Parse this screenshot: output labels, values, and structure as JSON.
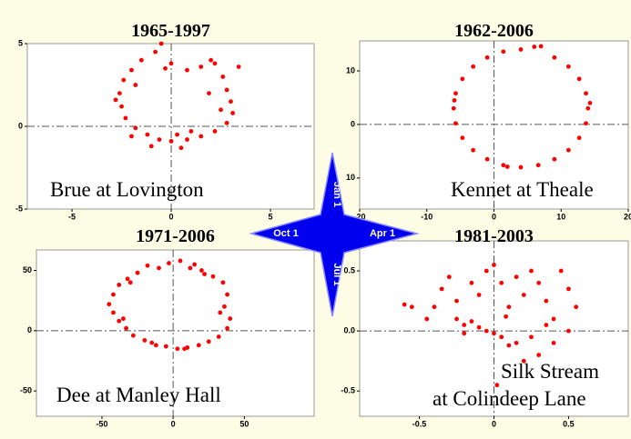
{
  "chart_data": [
    {
      "type": "scatter",
      "title": "1965-1997",
      "annotation": [
        "Brue at Lovington"
      ],
      "color": "#ff0000",
      "crosshair": true,
      "xlim": [
        -7.25,
        7.2
      ],
      "ylim": [
        -5,
        5
      ],
      "xticks": [
        -5,
        0,
        5
      ],
      "yticks": [
        -5,
        0,
        5
      ],
      "x": [
        -1.5,
        -0.8,
        0,
        0.8,
        1.5,
        2.2,
        2.6,
        2.8,
        3.0,
        3.1,
        2.8,
        2.2,
        1.5,
        0.8,
        0,
        -0.6,
        -1.2,
        -1.8,
        -2.3,
        -2.5,
        -2.6,
        -2.4,
        -2.0,
        -1.0,
        0.3,
        1.0,
        -2.0,
        2.5,
        -0.3,
        1.9,
        -2.8,
        0.5,
        3.4,
        2.0,
        -1.8,
        -0.5
      ],
      "values": [
        4.0,
        4.5,
        3.8,
        3.4,
        3.6,
        3.8,
        3.0,
        2.2,
        1.5,
        0.8,
        0.2,
        -0.3,
        -0.6,
        -0.8,
        -0.9,
        -0.8,
        -0.5,
        -0.1,
        0.5,
        1.2,
        2.0,
        2.8,
        3.4,
        -1.2,
        -0.5,
        -0.3,
        -0.6,
        1.0,
        3.5,
        2.0,
        1.6,
        -1.3,
        3.6,
        4.0,
        2.5,
        5.0
      ]
    },
    {
      "type": "scatter",
      "title": "1962-2006",
      "annotation": [
        "Kennet at Theale"
      ],
      "color": "#ff0000",
      "crosshair": true,
      "xlim": [
        -20,
        20
      ],
      "ylim": [
        -15.8,
        15.6
      ],
      "xticks": [
        -20,
        -10,
        0,
        10,
        20
      ],
      "yticks": [
        {
          "value": -10,
          "label": "10"
        },
        0,
        10
      ],
      "x": [
        14,
        13.7,
        12.7,
        11.1,
        9,
        6,
        4,
        1.4,
        -1,
        -3.1,
        -4.7,
        -5.7,
        -6,
        -5.7,
        -4.7,
        -3.1,
        -1,
        1.4,
        4,
        6.6,
        9,
        11.1,
        12.7,
        13.7,
        7,
        14.3,
        2,
        -5.9
      ],
      "values": [
        3,
        5.8,
        8.5,
        10.8,
        12.5,
        14.5,
        14,
        13.6,
        12.5,
        10.8,
        8.5,
        5.8,
        3,
        0.2,
        -2.5,
        -4.8,
        -6.5,
        -7.6,
        -8,
        -7.6,
        -6.5,
        -4.8,
        -2.5,
        0.2,
        14.6,
        4,
        -7.9,
        4.5
      ]
    },
    {
      "type": "scatter",
      "title": "1971-2006",
      "annotation": [
        "Dee at Manley Hall"
      ],
      "color": "#ff0000",
      "crosshair": true,
      "xlim": [
        -96,
        99
      ],
      "ylim": [
        -71,
        67
      ],
      "xticks": [
        -50,
        0,
        50
      ],
      "yticks": [
        -50,
        0,
        50
      ],
      "x": [
        -45,
        -42,
        -38,
        -32,
        -25,
        -18,
        -10,
        -3,
        5,
        12,
        20,
        28,
        35,
        38,
        36,
        40,
        38,
        32,
        25,
        18,
        10,
        3,
        -5,
        -12,
        -20,
        -28,
        -33,
        -38,
        -42,
        -30,
        15,
        33,
        -15,
        8,
        -35,
        22
      ],
      "values": [
        22,
        30,
        38,
        43,
        48,
        54,
        52,
        56,
        58,
        52,
        50,
        45,
        40,
        30,
        20,
        10,
        2,
        -5,
        -9,
        -12,
        -14,
        -15,
        -13,
        -12,
        -8,
        -4,
        2,
        8,
        15,
        40,
        55,
        15,
        -10,
        -15,
        10,
        47
      ]
    },
    {
      "type": "scatter",
      "title": "1981-2003",
      "annotation": [
        "Silk Stream",
        "at Colindeep Lane"
      ],
      "color": "#ff0000",
      "crosshair": true,
      "xlim": [
        -0.9,
        0.9
      ],
      "ylim": [
        -0.71,
        0.75
      ],
      "xticks": [
        -0.5,
        0,
        0.5
      ],
      "yticks": [
        -0.5,
        {
          "value": 0,
          "label": "0.0"
        },
        0.5
      ],
      "x": [
        -0.6,
        -0.55,
        -0.45,
        -0.4,
        -0.35,
        -0.3,
        -0.25,
        -0.2,
        -0.15,
        -0.1,
        -0.05,
        0,
        0.05,
        0.1,
        0.15,
        0.2,
        0.25,
        0.3,
        0.35,
        0.4,
        0.45,
        0.5,
        0.55,
        0.5,
        0.4,
        0.3,
        0.2,
        0.1,
        0.05,
        0,
        -0.05,
        -0.1,
        -0.15,
        -0.2,
        0.15,
        0.25,
        0.02,
        -0.25,
        0.35,
        0.08
      ],
      "values": [
        0.22,
        0.2,
        0.1,
        0.2,
        0.35,
        0.45,
        0.25,
        0.05,
        0.4,
        0.3,
        0.5,
        0.55,
        0.4,
        0.2,
        0.45,
        0.3,
        0.5,
        0.4,
        0.25,
        0.1,
        0.5,
        0.35,
        0.2,
        0,
        -0.1,
        -0.2,
        -0.25,
        -0.12,
        -0.05,
        -0.02,
        0,
        0.03,
        0.08,
        -0.02,
        -0.1,
        -0.05,
        -0.45,
        0.1,
        0.05,
        0.12
      ]
    }
  ],
  "compass": {
    "top": "Jan 1",
    "right": "Apr 1",
    "bottom": "Jul 1",
    "left": "Oct 1"
  }
}
